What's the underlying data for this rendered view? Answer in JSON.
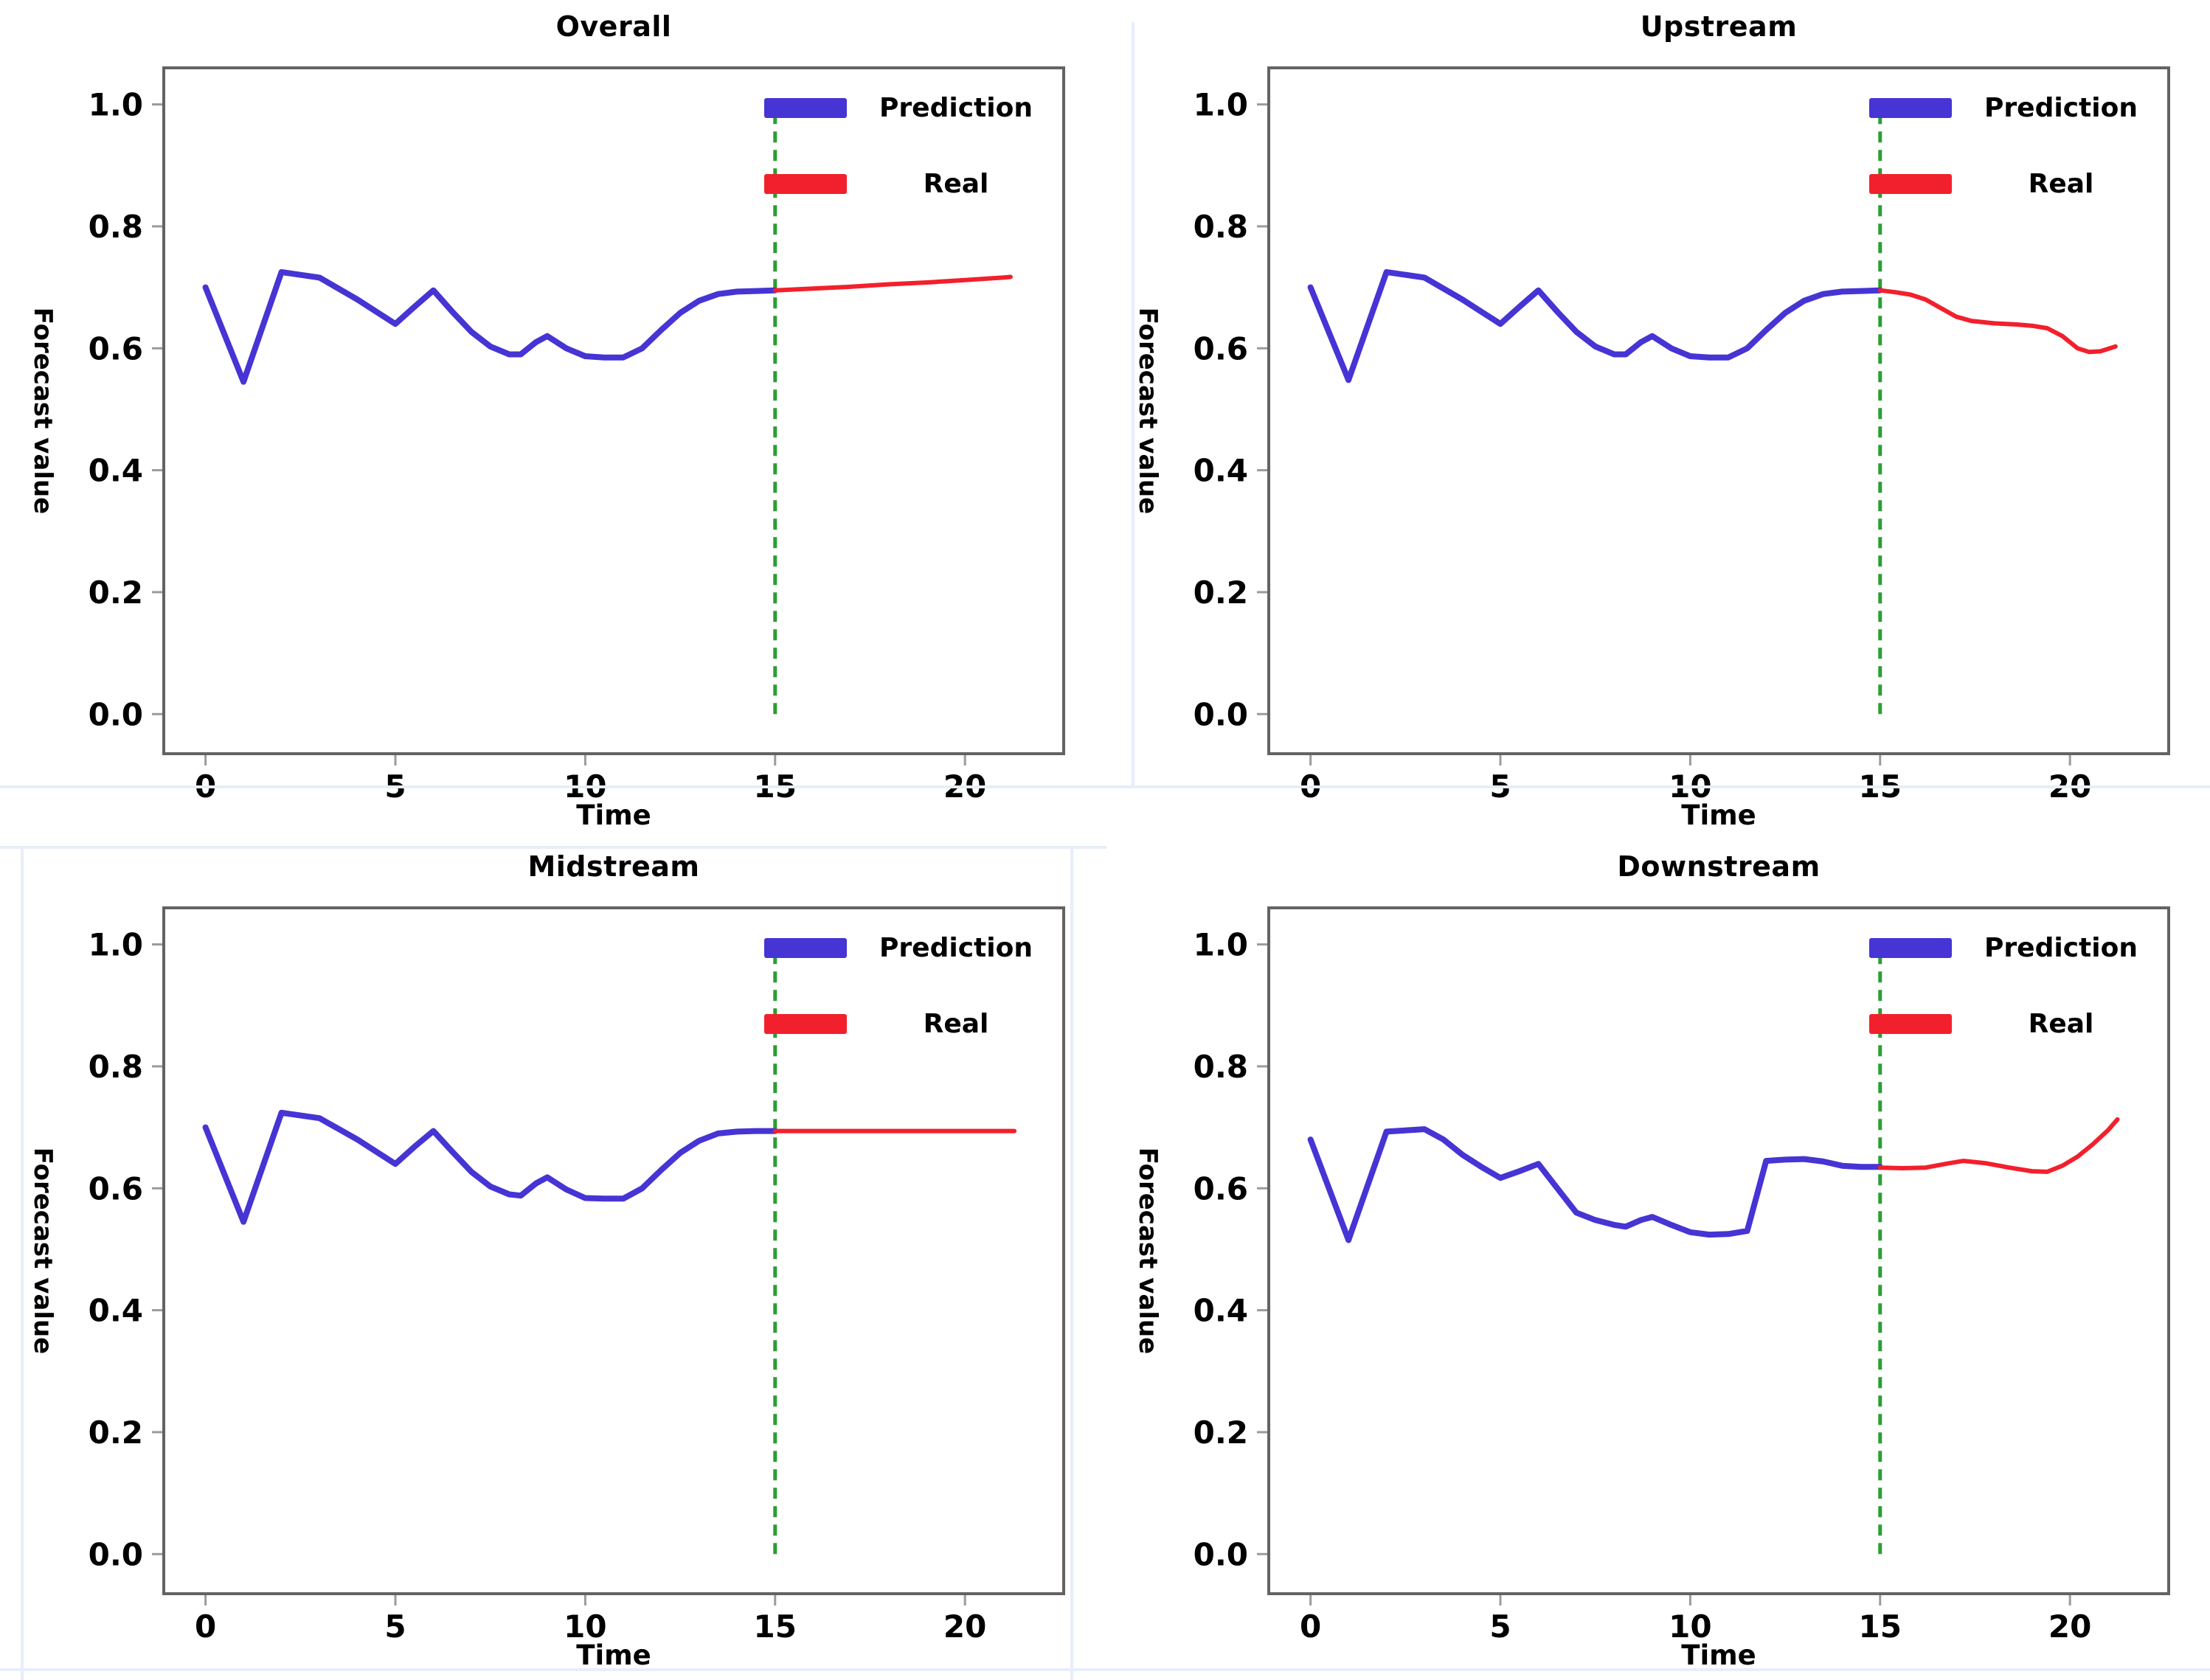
{
  "figure": {
    "xlabel": "Time",
    "ylabel": "Forecast value",
    "legend": {
      "prediction_label": "Prediction",
      "real_label": "Real"
    },
    "colors": {
      "prediction": "#4634d4",
      "real": "#f2202c",
      "split_line": "#2b9e33",
      "spine": "#636363",
      "tick": "#9b9b9b",
      "text": "#000000"
    },
    "split_x": 15,
    "xlim": [
      -1.1,
      22.6
    ],
    "ylim": [
      -0.065,
      1.06
    ],
    "x_ticks": [
      0,
      5,
      10,
      15,
      20
    ],
    "x_tick_labels": [
      "0",
      "5",
      "10",
      "15",
      "20"
    ],
    "y_ticks": [
      0.0,
      0.2,
      0.4,
      0.6,
      0.8,
      1.0
    ],
    "y_tick_labels": [
      "0.0",
      "0.2",
      "0.4",
      "0.6",
      "0.8",
      "1.0"
    ],
    "grid": false,
    "legend_position": "upper right"
  },
  "chart_data": [
    {
      "type": "line",
      "title": "Overall",
      "series": [
        {
          "name": "Prediction",
          "color": "prediction",
          "width": 8,
          "x": [
            0,
            1,
            2,
            3,
            4,
            4.5,
            5,
            5.5,
            6,
            6.5,
            7,
            7.5,
            8,
            8.3,
            8.7,
            9,
            9.5,
            10,
            10.5,
            11,
            11.5,
            12,
            12.5,
            13,
            13.5,
            14,
            14.5,
            15
          ],
          "y": [
            0.7,
            0.545,
            0.725,
            0.716,
            0.68,
            0.66,
            0.64,
            0.668,
            0.695,
            0.66,
            0.627,
            0.603,
            0.59,
            0.59,
            0.61,
            0.62,
            0.6,
            0.587,
            0.585,
            0.585,
            0.6,
            0.63,
            0.658,
            0.678,
            0.689,
            0.693,
            0.694,
            0.695
          ]
        },
        {
          "name": "Real",
          "color": "real",
          "width": 6,
          "x": [
            15,
            16,
            17,
            18,
            19,
            20,
            21,
            21.2
          ],
          "y": [
            0.695,
            0.698,
            0.701,
            0.705,
            0.708,
            0.712,
            0.716,
            0.717
          ]
        }
      ]
    },
    {
      "type": "line",
      "title": "Upstream",
      "series": [
        {
          "name": "Prediction",
          "color": "prediction",
          "width": 8,
          "x": [
            0,
            1,
            2,
            3,
            4,
            4.5,
            5,
            5.5,
            6,
            6.5,
            7,
            7.5,
            8,
            8.3,
            8.7,
            9,
            9.5,
            10,
            10.5,
            11,
            11.5,
            12,
            12.5,
            13,
            13.5,
            14,
            14.5,
            15
          ],
          "y": [
            0.7,
            0.548,
            0.725,
            0.716,
            0.68,
            0.66,
            0.64,
            0.668,
            0.695,
            0.66,
            0.627,
            0.603,
            0.59,
            0.59,
            0.61,
            0.62,
            0.6,
            0.587,
            0.585,
            0.585,
            0.6,
            0.63,
            0.658,
            0.678,
            0.689,
            0.693,
            0.694,
            0.695
          ]
        },
        {
          "name": "Real",
          "color": "real",
          "width": 6,
          "x": [
            15,
            15.4,
            15.8,
            16.2,
            16.6,
            17,
            17.4,
            18,
            18.6,
            19,
            19.4,
            19.8,
            20.2,
            20.5,
            20.8,
            21.2
          ],
          "y": [
            0.695,
            0.692,
            0.688,
            0.68,
            0.666,
            0.652,
            0.645,
            0.641,
            0.639,
            0.637,
            0.633,
            0.62,
            0.6,
            0.594,
            0.595,
            0.603
          ]
        }
      ]
    },
    {
      "type": "line",
      "title": "Midstream",
      "series": [
        {
          "name": "Prediction",
          "color": "prediction",
          "width": 8,
          "x": [
            0,
            1,
            2,
            3,
            4,
            4.5,
            5,
            5.5,
            6,
            6.5,
            7,
            7.5,
            8,
            8.3,
            8.7,
            9,
            9.5,
            10,
            10.5,
            11,
            11.5,
            12,
            12.5,
            13,
            13.5,
            14,
            14.5,
            15
          ],
          "y": [
            0.7,
            0.545,
            0.724,
            0.715,
            0.68,
            0.66,
            0.64,
            0.668,
            0.694,
            0.66,
            0.627,
            0.603,
            0.59,
            0.588,
            0.608,
            0.618,
            0.598,
            0.584,
            0.583,
            0.583,
            0.6,
            0.63,
            0.658,
            0.678,
            0.69,
            0.693,
            0.694,
            0.694
          ]
        },
        {
          "name": "Real",
          "color": "real",
          "width": 6,
          "x": [
            15,
            16,
            17,
            18,
            19,
            20,
            21,
            21.3
          ],
          "y": [
            0.694,
            0.694,
            0.694,
            0.694,
            0.694,
            0.694,
            0.694,
            0.694
          ]
        }
      ]
    },
    {
      "type": "line",
      "title": "Downstream",
      "series": [
        {
          "name": "Prediction",
          "color": "prediction",
          "width": 8,
          "x": [
            0,
            1,
            2,
            3,
            3.5,
            4,
            4.5,
            5,
            5.5,
            6,
            6.5,
            7,
            7.5,
            8,
            8.3,
            8.7,
            9,
            9.5,
            10,
            10.5,
            11,
            11.5,
            12,
            12.5,
            13,
            13.5,
            14,
            14.5,
            15
          ],
          "y": [
            0.68,
            0.515,
            0.693,
            0.697,
            0.68,
            0.655,
            0.635,
            0.617,
            0.628,
            0.64,
            0.6,
            0.56,
            0.548,
            0.54,
            0.537,
            0.548,
            0.553,
            0.54,
            0.528,
            0.524,
            0.525,
            0.53,
            0.645,
            0.647,
            0.648,
            0.644,
            0.637,
            0.635,
            0.635
          ]
        },
        {
          "name": "Real",
          "color": "real",
          "width": 6,
          "x": [
            15,
            15.6,
            16.2,
            16.8,
            17.2,
            17.8,
            18.4,
            19,
            19.4,
            19.8,
            20.2,
            20.6,
            21,
            21.25
          ],
          "y": [
            0.634,
            0.633,
            0.634,
            0.641,
            0.645,
            0.641,
            0.634,
            0.628,
            0.627,
            0.637,
            0.652,
            0.672,
            0.695,
            0.713
          ]
        }
      ]
    }
  ]
}
